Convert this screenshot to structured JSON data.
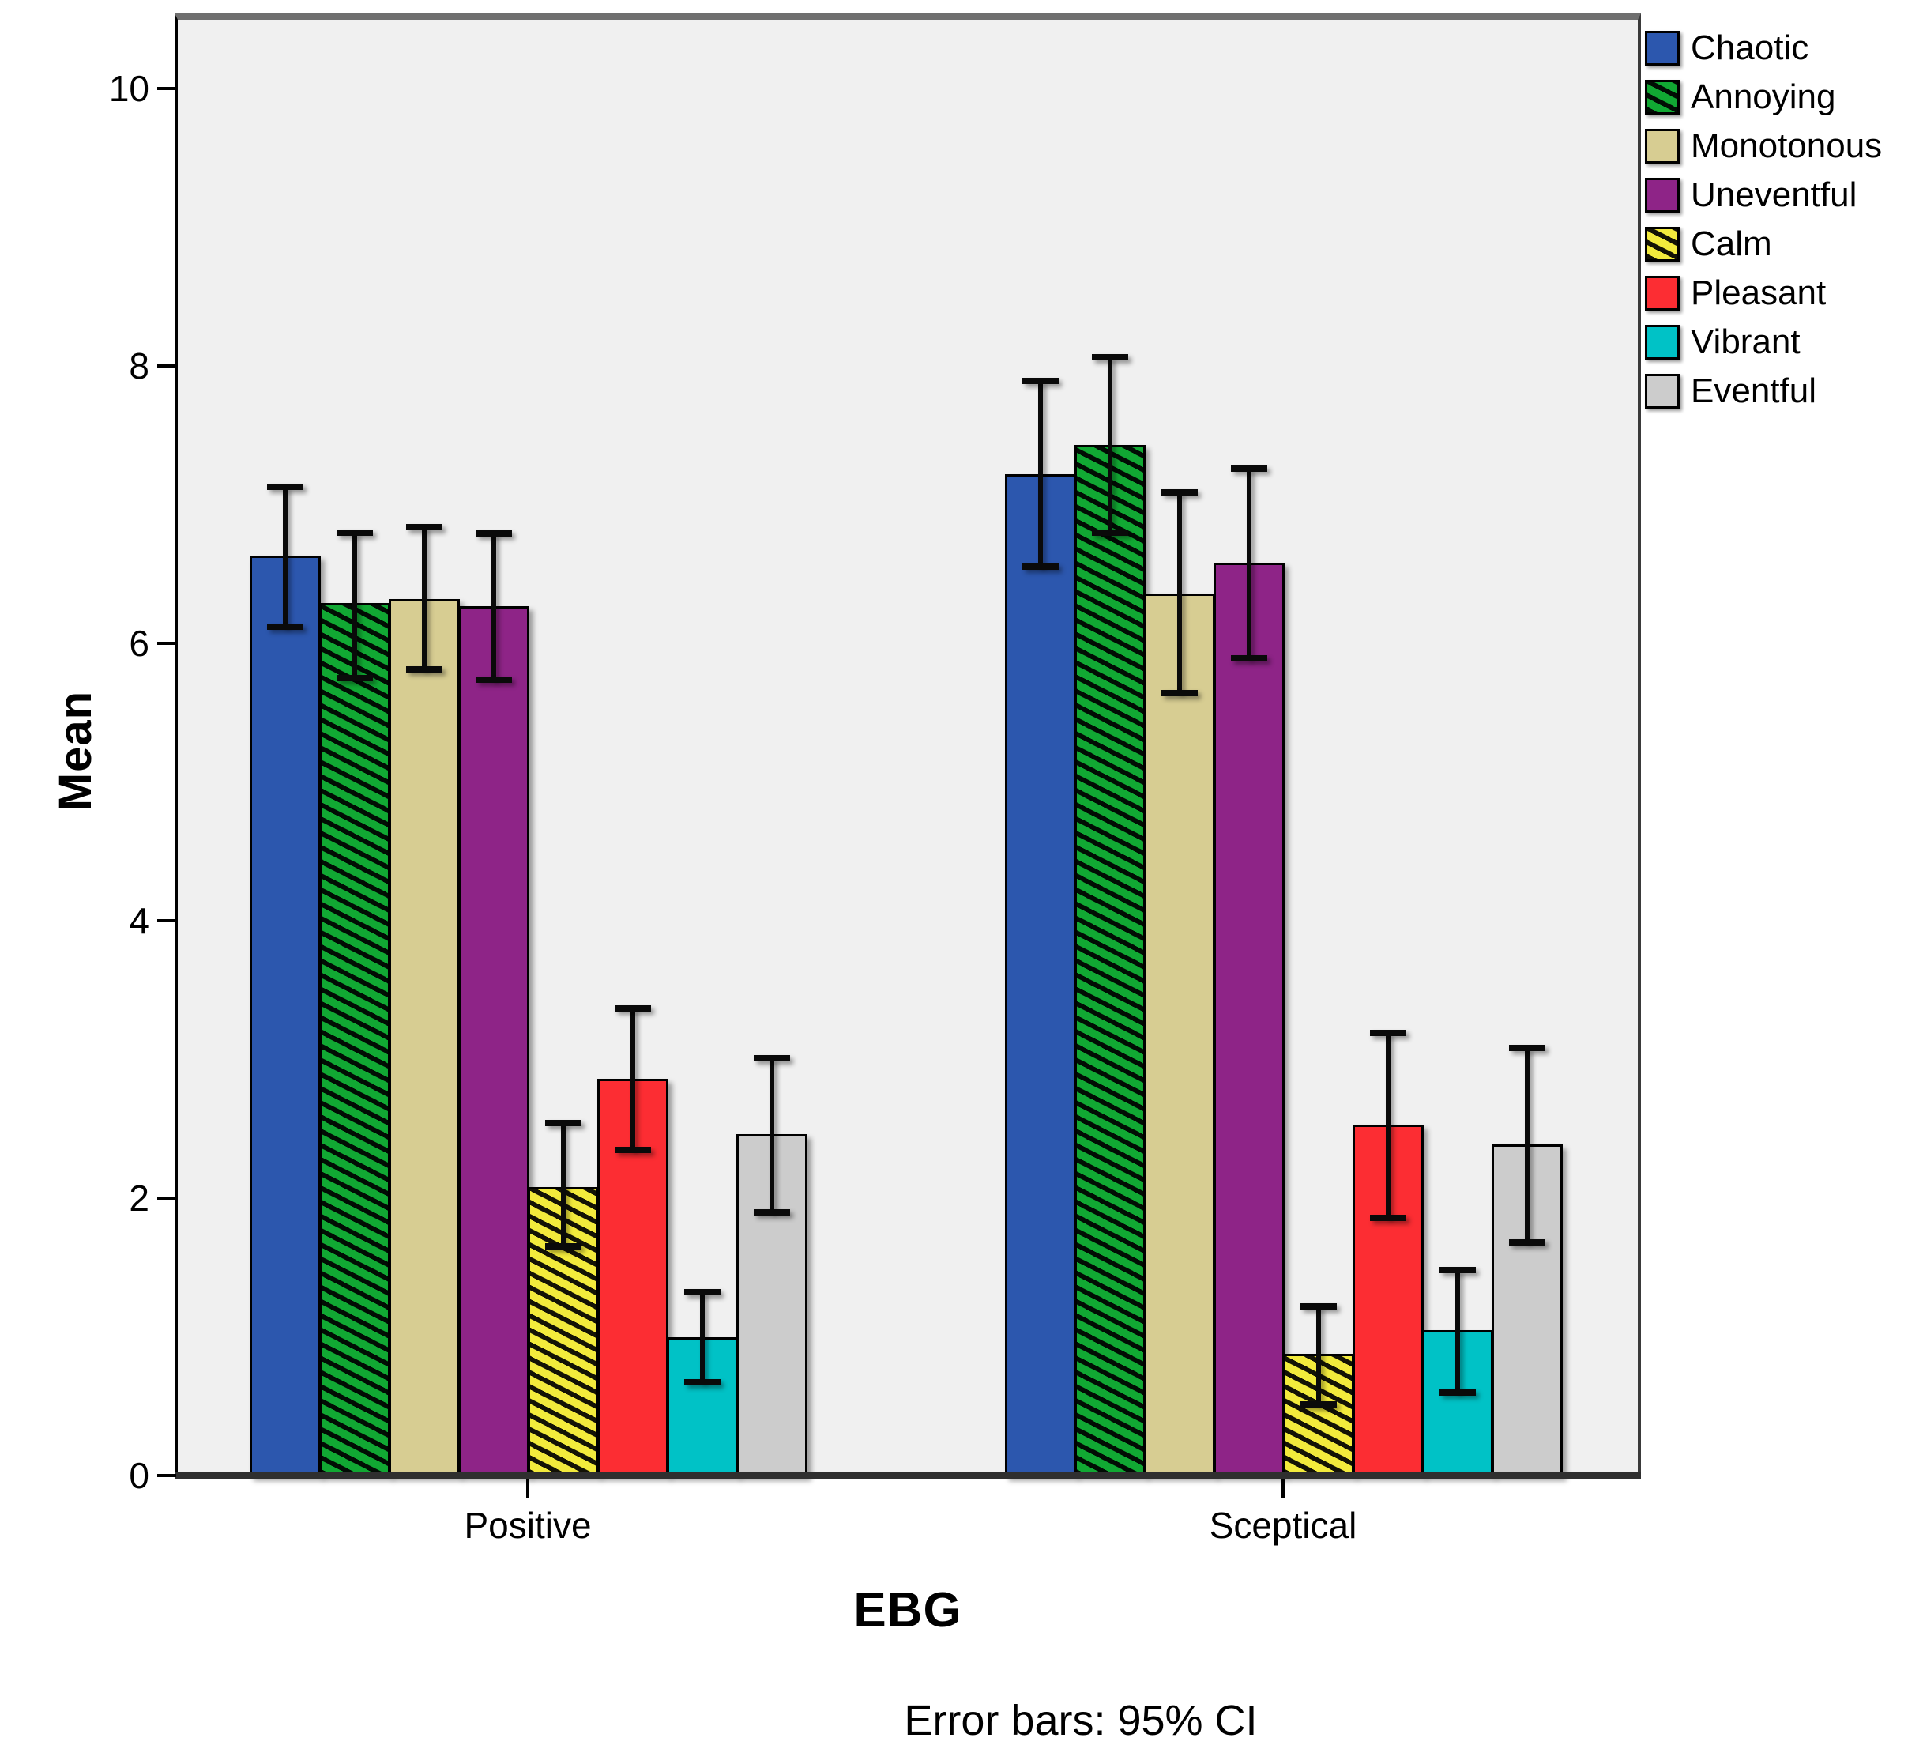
{
  "chart_data": {
    "type": "bar",
    "title": "",
    "xlabel": "EBG",
    "ylabel": "Mean",
    "caption": "Error bars: 95% CI",
    "error_bars": "95% CI",
    "categories": [
      "Positive",
      "Sceptical"
    ],
    "ylim": [
      0,
      10
    ],
    "yticks": [
      0,
      2,
      4,
      6,
      8,
      10
    ],
    "legend_position": "outside-top-right",
    "plot_bg_color": "#f0f0f0",
    "series": [
      {
        "name": "Chaotic",
        "color": "#2c57ae",
        "hatch": false,
        "values": [
          6.63,
          7.22
        ],
        "ci_low": [
          6.12,
          6.55
        ],
        "ci_high": [
          7.13,
          7.89
        ]
      },
      {
        "name": "Annoying",
        "color": "#11a833",
        "hatch": true,
        "values": [
          6.29,
          7.43
        ],
        "ci_low": [
          5.75,
          6.8
        ],
        "ci_high": [
          6.8,
          8.06
        ]
      },
      {
        "name": "Monotonous",
        "color": "#d7cd92",
        "hatch": false,
        "values": [
          6.32,
          6.36
        ],
        "ci_low": [
          5.81,
          5.64
        ],
        "ci_high": [
          6.84,
          7.09
        ]
      },
      {
        "name": "Uneventful",
        "color": "#8e2487",
        "hatch": false,
        "values": [
          6.27,
          6.58
        ],
        "ci_low": [
          5.74,
          5.89
        ],
        "ci_high": [
          6.79,
          7.26
        ]
      },
      {
        "name": "Calm",
        "color": "#f2ea3c",
        "hatch": true,
        "values": [
          2.08,
          0.88
        ],
        "ci_low": [
          1.65,
          0.51
        ],
        "ci_high": [
          2.54,
          1.22
        ]
      },
      {
        "name": "Pleasant",
        "color": "#fc2d33",
        "hatch": false,
        "values": [
          2.86,
          2.53
        ],
        "ci_low": [
          2.35,
          1.86
        ],
        "ci_high": [
          3.37,
          3.19
        ]
      },
      {
        "name": "Vibrant",
        "color": "#00c2c6",
        "hatch": false,
        "values": [
          1.0,
          1.05
        ],
        "ci_low": [
          0.67,
          0.6
        ],
        "ci_high": [
          1.32,
          1.48
        ]
      },
      {
        "name": "Eventful",
        "color": "#cccccc",
        "hatch": false,
        "values": [
          2.46,
          2.39
        ],
        "ci_low": [
          1.9,
          1.68
        ],
        "ci_high": [
          3.01,
          3.08
        ]
      }
    ]
  }
}
